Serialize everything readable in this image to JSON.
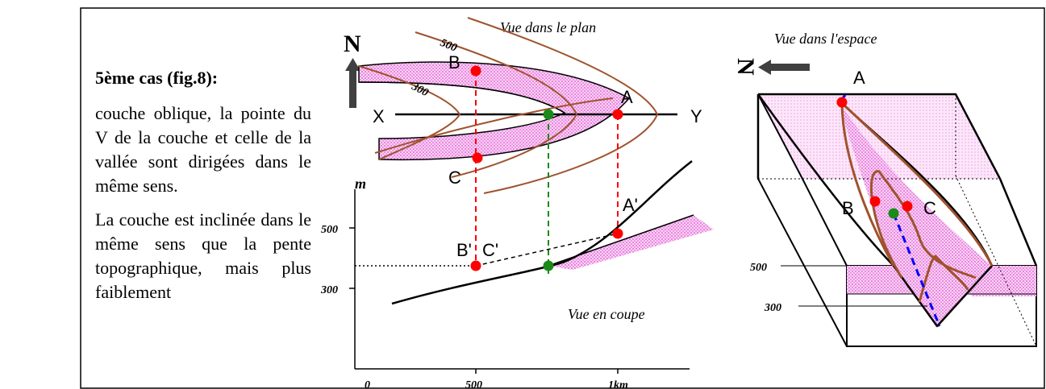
{
  "text_panel": {
    "heading": "5ème cas  (fig.8):",
    "paragraph1": "couche oblique, la pointe du V de la couche et celle de la vallée sont dirigées dans le même sens.",
    "paragraph2": "La couche est inclinée dans le même sens que la pente topographique, mais plus faiblement"
  },
  "plan_view": {
    "caption": "Vue dans le plan",
    "north": "N",
    "contour_labels": [
      "500",
      "300"
    ],
    "points": [
      "A",
      "B",
      "C",
      "X",
      "Y"
    ]
  },
  "section_view": {
    "caption": "Vue en coupe",
    "y_axis_label": "m",
    "y_ticks": [
      "500",
      "300"
    ],
    "x_ticks": [
      "0",
      "500",
      "1km"
    ],
    "points": [
      "A'",
      "B'",
      "C'"
    ]
  },
  "space_view": {
    "caption": "Vue dans l'espace",
    "north": "N",
    "points": [
      "A",
      "B",
      "C"
    ],
    "levels": [
      "500",
      "300"
    ]
  },
  "colors": {
    "layer_fill": "#f4a8ec",
    "contour": "#a0522d",
    "point_red": "#ff0000",
    "point_green": "#1a8a1a",
    "dashed_red": "#ff0000",
    "dashed_green": "#1a8a1a",
    "dashed_blue": "#0000ff"
  }
}
